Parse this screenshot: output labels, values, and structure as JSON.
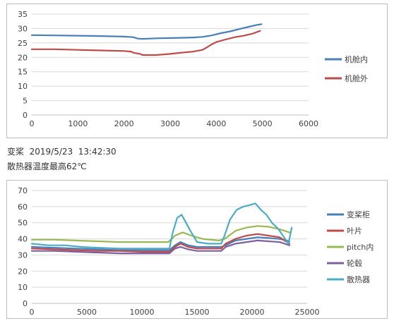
{
  "captions": {
    "line1": "变桨  2019/5/23  13:42:30",
    "line2": "散热器温度最高62℃"
  },
  "chart_data": [
    {
      "type": "line",
      "title": "",
      "xlabel": "",
      "ylabel": "",
      "xlim": [
        0,
        6000
      ],
      "ylim": [
        0,
        35
      ],
      "xticks": [
        0,
        1000,
        2000,
        3000,
        4000,
        5000,
        6000
      ],
      "yticks": [
        0,
        5,
        10,
        15,
        20,
        25,
        30,
        35
      ],
      "grid": "horizontal",
      "legend": "right",
      "series": [
        {
          "name": "机舱内",
          "color": "#4a7ebb",
          "points": [
            [
              0,
              27.7
            ],
            [
              500,
              27.6
            ],
            [
              1000,
              27.5
            ],
            [
              1500,
              27.4
            ],
            [
              2000,
              27.2
            ],
            [
              2200,
              27.0
            ],
            [
              2300,
              26.5
            ],
            [
              2400,
              26.4
            ],
            [
              2700,
              26.6
            ],
            [
              3000,
              26.7
            ],
            [
              3300,
              26.8
            ],
            [
              3500,
              26.9
            ],
            [
              3700,
              27.1
            ],
            [
              3900,
              27.6
            ],
            [
              4100,
              28.4
            ],
            [
              4300,
              29.0
            ],
            [
              4500,
              29.8
            ],
            [
              4700,
              30.6
            ],
            [
              4900,
              31.3
            ],
            [
              4980,
              31.5
            ]
          ]
        },
        {
          "name": "机舱外",
          "color": "#be4b48",
          "points": [
            [
              0,
              22.8
            ],
            [
              500,
              22.8
            ],
            [
              1000,
              22.6
            ],
            [
              1500,
              22.4
            ],
            [
              2000,
              22.2
            ],
            [
              2150,
              22.0
            ],
            [
              2200,
              21.6
            ],
            [
              2350,
              21.2
            ],
            [
              2400,
              20.8
            ],
            [
              2700,
              20.8
            ],
            [
              3000,
              21.2
            ],
            [
              3300,
              21.7
            ],
            [
              3500,
              22.0
            ],
            [
              3700,
              22.6
            ],
            [
              3800,
              23.5
            ],
            [
              3900,
              24.5
            ],
            [
              4000,
              25.3
            ],
            [
              4200,
              26.2
            ],
            [
              4400,
              27.0
            ],
            [
              4600,
              27.5
            ],
            [
              4800,
              28.3
            ],
            [
              4950,
              29.2
            ]
          ]
        }
      ]
    },
    {
      "type": "line",
      "title": "",
      "xlabel": "",
      "ylabel": "",
      "xlim": [
        0,
        25000
      ],
      "ylim": [
        0,
        70
      ],
      "xticks": [
        0,
        5000,
        10000,
        15000,
        20000,
        25000
      ],
      "yticks": [
        0,
        10,
        20,
        30,
        40,
        50,
        60,
        70
      ],
      "grid": "horizontal",
      "legend": "right",
      "series": [
        {
          "name": "变桨柜",
          "color": "#4a7ebb",
          "points": [
            [
              0,
              35
            ],
            [
              2000,
              34.5
            ],
            [
              4000,
              34
            ],
            [
              6000,
              33.5
            ],
            [
              8000,
              33
            ],
            [
              10000,
              33
            ],
            [
              12500,
              33
            ],
            [
              13000,
              36
            ],
            [
              13500,
              38
            ],
            [
              14200,
              36
            ],
            [
              15000,
              35
            ],
            [
              16000,
              35
            ],
            [
              17200,
              35
            ],
            [
              17600,
              36
            ],
            [
              18500,
              39
            ],
            [
              19500,
              40
            ],
            [
              20500,
              41
            ],
            [
              21500,
              40.5
            ],
            [
              22500,
              40
            ],
            [
              23400,
              38.5
            ]
          ]
        },
        {
          "name": "叶片",
          "color": "#be4b48",
          "points": [
            [
              0,
              34
            ],
            [
              2000,
              33.5
            ],
            [
              4000,
              33
            ],
            [
              6000,
              32.5
            ],
            [
              8000,
              32.5
            ],
            [
              10000,
              32
            ],
            [
              12500,
              32
            ],
            [
              13000,
              35
            ],
            [
              13500,
              37
            ],
            [
              14200,
              35
            ],
            [
              15000,
              34
            ],
            [
              16000,
              34
            ],
            [
              17200,
              34
            ],
            [
              17600,
              37
            ],
            [
              18500,
              40
            ],
            [
              19500,
              42
            ],
            [
              20500,
              43
            ],
            [
              21500,
              42
            ],
            [
              22500,
              41
            ],
            [
              23400,
              37
            ]
          ]
        },
        {
          "name": "pitch内",
          "color": "#98b954",
          "points": [
            [
              0,
              39.5
            ],
            [
              2000,
              39.5
            ],
            [
              4000,
              39
            ],
            [
              6000,
              38.5
            ],
            [
              8000,
              38
            ],
            [
              10000,
              38
            ],
            [
              12400,
              38
            ],
            [
              13000,
              42
            ],
            [
              13700,
              44
            ],
            [
              14500,
              42
            ],
            [
              15500,
              40
            ],
            [
              17000,
              39
            ],
            [
              17500,
              40
            ],
            [
              18500,
              45
            ],
            [
              19500,
              47
            ],
            [
              20500,
              48
            ],
            [
              21500,
              47.5
            ],
            [
              22500,
              46
            ],
            [
              23400,
              44
            ]
          ]
        },
        {
          "name": "轮毂",
          "color": "#7d60a0",
          "points": [
            [
              0,
              32.5
            ],
            [
              2000,
              32.5
            ],
            [
              4000,
              32
            ],
            [
              6000,
              31.5
            ],
            [
              8000,
              31
            ],
            [
              10000,
              31
            ],
            [
              12500,
              31
            ],
            [
              13000,
              34
            ],
            [
              13500,
              35
            ],
            [
              14200,
              33.5
            ],
            [
              15000,
              32.5
            ],
            [
              16000,
              32.5
            ],
            [
              17200,
              32.5
            ],
            [
              17600,
              35
            ],
            [
              18500,
              37
            ],
            [
              19500,
              38
            ],
            [
              20500,
              39
            ],
            [
              21500,
              38.5
            ],
            [
              22500,
              38
            ],
            [
              23400,
              36
            ]
          ]
        },
        {
          "name": "散热器",
          "color": "#4bacc6",
          "points": [
            [
              0,
              37
            ],
            [
              1500,
              36
            ],
            [
              3000,
              36
            ],
            [
              4500,
              35
            ],
            [
              6000,
              34.5
            ],
            [
              8000,
              34
            ],
            [
              10000,
              34
            ],
            [
              12500,
              34
            ],
            [
              12800,
              44
            ],
            [
              13200,
              53
            ],
            [
              13600,
              55
            ],
            [
              14000,
              50
            ],
            [
              14400,
              45
            ],
            [
              15000,
              38
            ],
            [
              16000,
              37
            ],
            [
              17200,
              37
            ],
            [
              17500,
              42
            ],
            [
              18000,
              52
            ],
            [
              18600,
              58
            ],
            [
              19200,
              60
            ],
            [
              19800,
              61
            ],
            [
              20300,
              62
            ],
            [
              20800,
              58
            ],
            [
              21300,
              55
            ],
            [
              21800,
              50
            ],
            [
              22400,
              46
            ],
            [
              23000,
              40
            ],
            [
              23300,
              37
            ],
            [
              23600,
              47
            ]
          ]
        }
      ]
    }
  ]
}
